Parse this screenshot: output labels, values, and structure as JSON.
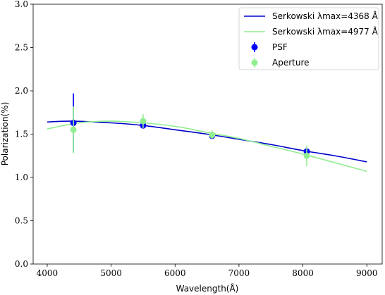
{
  "chart_data": {
    "type": "line",
    "xlabel": "Wavelength(Å)",
    "ylabel": "Polarization(%)",
    "xlim": [
      3780,
      9240
    ],
    "ylim": [
      0.0,
      3.0
    ],
    "x_ticks": [
      4000,
      5000,
      6000,
      7000,
      8000,
      9000
    ],
    "x_tick_labels": [
      "4000",
      "5000",
      "6000",
      "7000",
      "8000",
      "9000"
    ],
    "y_ticks": [
      0.0,
      0.5,
      1.0,
      1.5,
      2.0,
      2.5,
      3.0
    ],
    "y_tick_labels": [
      "0.0",
      "0.5",
      "1.0",
      "1.5",
      "2.0",
      "2.5",
      "3.0"
    ],
    "grid": false,
    "legend_position": "top-right",
    "series": [
      {
        "name": "Serkowski λmax=4368 Å",
        "kind": "line",
        "color": "#0000cc",
        "x": [
          4000,
          4368,
          5000,
          5500,
          6000,
          6500,
          7000,
          7500,
          8000,
          8500,
          9000
        ],
        "y": [
          1.64,
          1.65,
          1.63,
          1.6,
          1.55,
          1.5,
          1.44,
          1.38,
          1.31,
          1.25,
          1.18
        ]
      },
      {
        "name": "Serkowski λmax=4977 Å",
        "kind": "line",
        "color": "#90ee90",
        "x": [
          4000,
          4500,
          4977,
          5500,
          6000,
          6500,
          7000,
          7500,
          8000,
          8500,
          9000
        ],
        "y": [
          1.56,
          1.63,
          1.65,
          1.63,
          1.59,
          1.52,
          1.45,
          1.36,
          1.27,
          1.17,
          1.07
        ]
      },
      {
        "name": "PSF",
        "kind": "errorbar",
        "color": "#0000ff",
        "x": [
          4410,
          5500,
          6580,
          8060
        ],
        "y": [
          1.63,
          1.6,
          1.48,
          1.3
        ],
        "yerr": [
          0.34,
          0.02,
          0.03,
          0.04
        ]
      },
      {
        "name": "Aperture",
        "kind": "errorbar",
        "color": "#90ee90",
        "x": [
          4410,
          5500,
          6580,
          8060
        ],
        "y": [
          1.55,
          1.65,
          1.49,
          1.25
        ],
        "yerr": [
          0.27,
          0.08,
          0.05,
          0.12
        ]
      }
    ]
  }
}
